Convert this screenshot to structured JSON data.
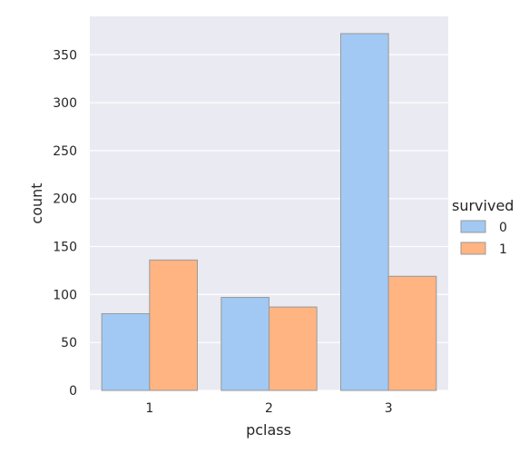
{
  "chart_data": {
    "type": "bar",
    "categories": [
      "1",
      "2",
      "3"
    ],
    "series": [
      {
        "name": "0",
        "values": [
          80,
          97,
          372
        ]
      },
      {
        "name": "1",
        "values": [
          136,
          87,
          119
        ]
      }
    ],
    "xlabel": "pclass",
    "ylabel": "count",
    "ylim": [
      0,
      390
    ],
    "yticks": [
      0,
      50,
      100,
      150,
      200,
      250,
      300,
      350
    ],
    "legend": {
      "title": "survived",
      "placement": "right"
    },
    "grid": true,
    "colors": {
      "background": "#eaeaf2",
      "grid": "#ffffff",
      "bar_edge": "#999999",
      "series": [
        "#a1c9f4",
        "#ffb482"
      ]
    }
  }
}
